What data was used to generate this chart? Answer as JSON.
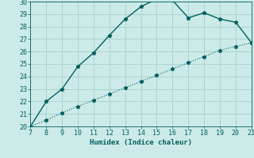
{
  "xlabel": "Humidex (Indice chaleur)",
  "background_color": "#cceae7",
  "line_color": "#006060",
  "grid_color": "#aad4d0",
  "x_upper": [
    7,
    8,
    9,
    10,
    11,
    12,
    13,
    14,
    15,
    16,
    17,
    18,
    19,
    20,
    21
  ],
  "y_upper": [
    20.0,
    22.0,
    23.0,
    24.8,
    25.9,
    27.3,
    28.6,
    29.6,
    30.2,
    30.1,
    28.7,
    29.1,
    28.6,
    28.35,
    26.7
  ],
  "x_lower": [
    7,
    8,
    9,
    10,
    11,
    12,
    13,
    14,
    15,
    16,
    17,
    18,
    19,
    20,
    21
  ],
  "y_lower": [
    20.0,
    20.5,
    21.1,
    21.6,
    22.1,
    22.6,
    23.1,
    23.6,
    24.1,
    24.6,
    25.1,
    25.6,
    26.1,
    26.4,
    26.7
  ],
  "xlim": [
    7,
    21
  ],
  "ylim": [
    20,
    30
  ],
  "xticks": [
    7,
    8,
    9,
    10,
    11,
    12,
    13,
    14,
    15,
    16,
    17,
    18,
    19,
    20,
    21
  ],
  "yticks": [
    20,
    21,
    22,
    23,
    24,
    25,
    26,
    27,
    28,
    29,
    30
  ],
  "marker": "*",
  "marker_size": 3.5,
  "linewidth_upper": 1.0,
  "linewidth_lower": 0.8
}
